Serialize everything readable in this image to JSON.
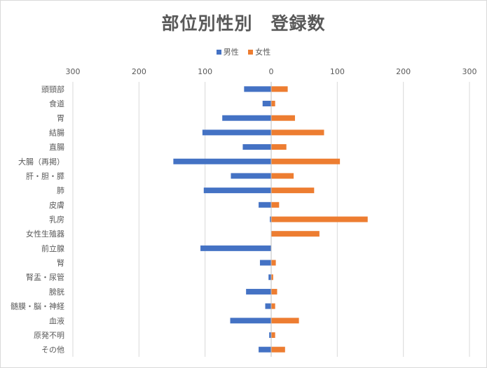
{
  "chart_data": {
    "type": "bar",
    "orientation": "horizontal",
    "layout": "butterfly",
    "title": "部位別性別　登録数",
    "xlabel": "",
    "ylabel": "",
    "xlim": [
      -300,
      300
    ],
    "x_ticks": [
      -300,
      -200,
      -100,
      0,
      100,
      200,
      300
    ],
    "x_tick_labels": [
      "300",
      "200",
      "100",
      "0",
      "100",
      "200",
      "300"
    ],
    "grid": true,
    "legend_position": "top",
    "categories": [
      "頭頸部",
      "食道",
      "胃",
      "結腸",
      "直腸",
      "大腸（再掲）",
      "肝・胆・膵",
      "肺",
      "皮膚",
      "乳房",
      "女性生殖器",
      "前立腺",
      "腎",
      "腎盂・尿管",
      "膀胱",
      "髄膜・脳・神経",
      "血液",
      "原発不明",
      "その他"
    ],
    "series": [
      {
        "name": "男性",
        "color": "#4472c4",
        "values": [
          41,
          13,
          74,
          104,
          43,
          148,
          61,
          102,
          19,
          2,
          0,
          107,
          17,
          4,
          38,
          9,
          62,
          3,
          19
        ]
      },
      {
        "name": "女性",
        "color": "#ed7d31",
        "values": [
          25,
          6,
          36,
          80,
          23,
          104,
          34,
          65,
          12,
          146,
          73,
          0,
          7,
          3,
          9,
          6,
          42,
          6,
          21
        ]
      }
    ]
  }
}
